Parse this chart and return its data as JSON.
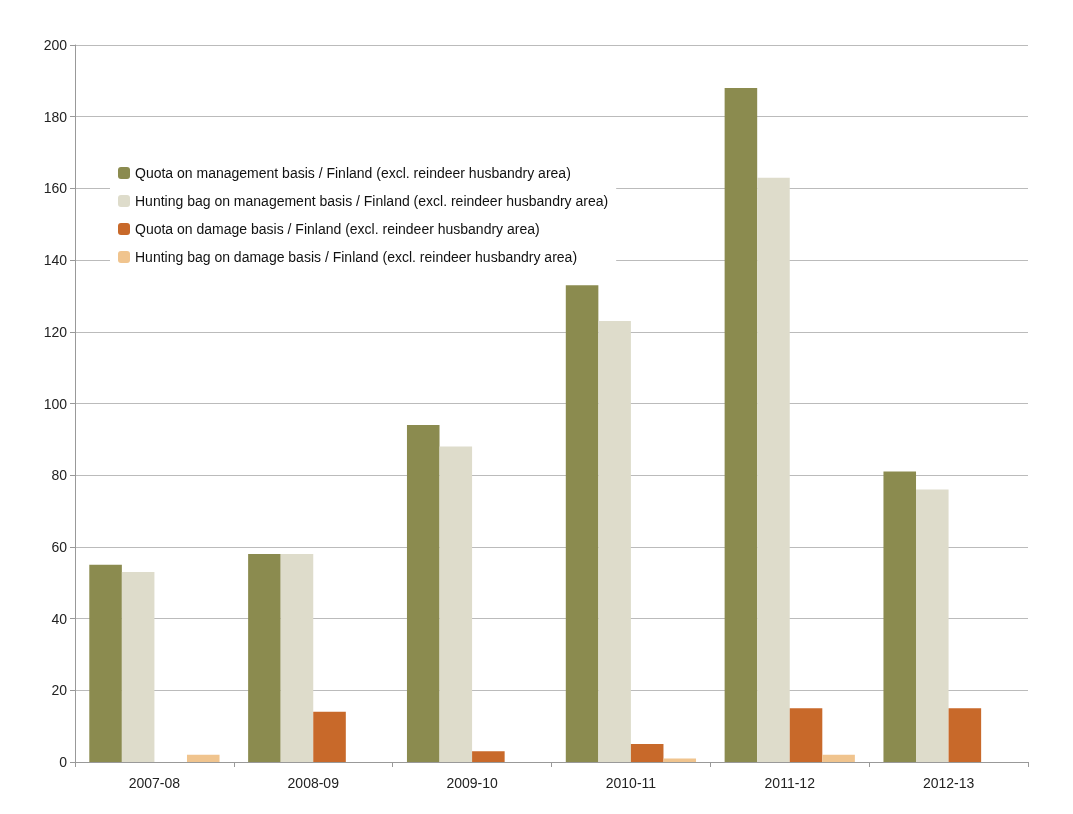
{
  "chart_data": {
    "type": "bar",
    "categories": [
      "2007-08",
      "2008-09",
      "2009-10",
      "2010-11",
      "2011-12",
      "2012-13"
    ],
    "series": [
      {
        "name": "Quota on management basis / Finland (excl. reindeer husbandry area)",
        "color": "#8b8b4f",
        "values": [
          55,
          58,
          94,
          133,
          188,
          81
        ]
      },
      {
        "name": "Hunting bag on management basis / Finland (excl. reindeer husbandry area)",
        "color": "#dedccb",
        "values": [
          53,
          58,
          88,
          123,
          163,
          76
        ]
      },
      {
        "name": "Quota on damage basis / Finland (excl. reindeer husbandry area)",
        "color": "#c8692a",
        "values": [
          0,
          14,
          3,
          5,
          15,
          15
        ]
      },
      {
        "name": "Hunting bag on damage basis / Finland (excl. reindeer husbandry area)",
        "color": "#f0c48e",
        "values": [
          2,
          0,
          0,
          1,
          2,
          0
        ]
      }
    ],
    "ylim": [
      0,
      200
    ],
    "yticks": [
      0,
      20,
      40,
      60,
      80,
      100,
      120,
      140,
      160,
      180,
      200
    ],
    "grid": "y",
    "legend": "top left"
  }
}
